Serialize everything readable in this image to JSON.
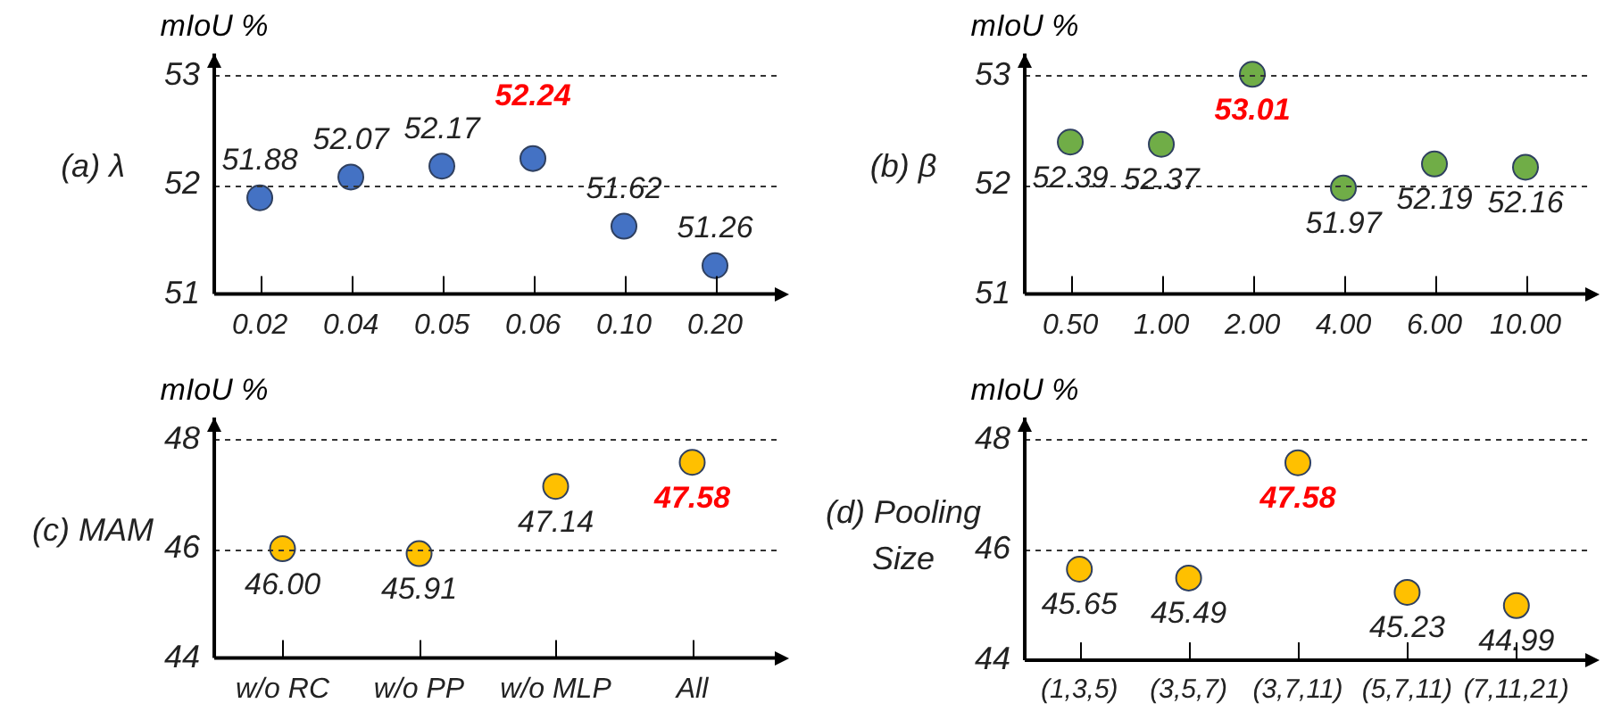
{
  "chart_data": [
    {
      "type": "scatter",
      "title": "(a) λ",
      "ylabel": "mIoU %",
      "categories": [
        "0.02",
        "0.04",
        "0.05",
        "0.06",
        "0.10",
        "0.20"
      ],
      "values": [
        51.88,
        52.07,
        52.17,
        52.24,
        51.62,
        51.26
      ],
      "color": "#4472c4",
      "value_labels": [
        "51.88",
        "52.07",
        "52.17",
        null,
        "51.62",
        "51.26"
      ],
      "annotations": [
        {
          "text": "52.24",
          "x": "0.06",
          "y": 52.24
        }
      ],
      "ylim": [
        51,
        53.2
      ],
      "yticks": [
        51,
        52,
        53
      ],
      "grid": "y",
      "marker": "circle"
    },
    {
      "type": "scatter",
      "title": "(b) β",
      "ylabel": "mIoU %",
      "categories": [
        "0.50",
        "1.00",
        "2.00",
        "4.00",
        "6.00",
        "10.00"
      ],
      "values": [
        52.39,
        52.37,
        53.01,
        51.97,
        52.19,
        52.16
      ],
      "color": "#70ad47",
      "value_labels": [
        "52.39",
        "52.37",
        null,
        "51.97",
        "52.19",
        "52.16"
      ],
      "annotations": [
        {
          "text": "53.01",
          "x": "2.00",
          "y": 53.01
        }
      ],
      "ylim": [
        51,
        53.2
      ],
      "yticks": [
        51,
        52,
        53
      ],
      "grid": "y",
      "marker": "circle"
    },
    {
      "type": "scatter",
      "title": "(c) MAM",
      "ylabel": "mIoU %",
      "categories": [
        "w/o RC",
        "w/o PP",
        "w/o MLP",
        "All"
      ],
      "values": [
        46.0,
        45.91,
        47.14,
        47.58
      ],
      "color": "#ffc000",
      "value_labels": [
        "46.00",
        "45.91",
        "47.14",
        null
      ],
      "annotations": [
        {
          "text": "47.58",
          "x": "All",
          "y": 47.58
        }
      ],
      "ylim": [
        44,
        48.4
      ],
      "yticks": [
        44,
        46,
        48
      ],
      "grid": "y",
      "marker": "circle"
    },
    {
      "type": "scatter",
      "title": "(d) Pooling Size",
      "ylabel": "mIoU %",
      "categories": [
        "(1,3,5)",
        "(3,5,7)",
        "(3,7,11)",
        "(5,7,11)",
        "(7,11,21)"
      ],
      "values": [
        45.65,
        45.49,
        47.58,
        45.23,
        44.99
      ],
      "color": "#ffc000",
      "value_labels": [
        "45.65",
        "45.49",
        null,
        "45.23",
        "44.99"
      ],
      "annotations": [
        {
          "text": "47.58",
          "x": "(3,7,11)",
          "y": 47.58
        }
      ],
      "ylim": [
        44,
        48.4
      ],
      "yticks": [
        44,
        46,
        48
      ],
      "grid": "y",
      "marker": "circle"
    }
  ]
}
